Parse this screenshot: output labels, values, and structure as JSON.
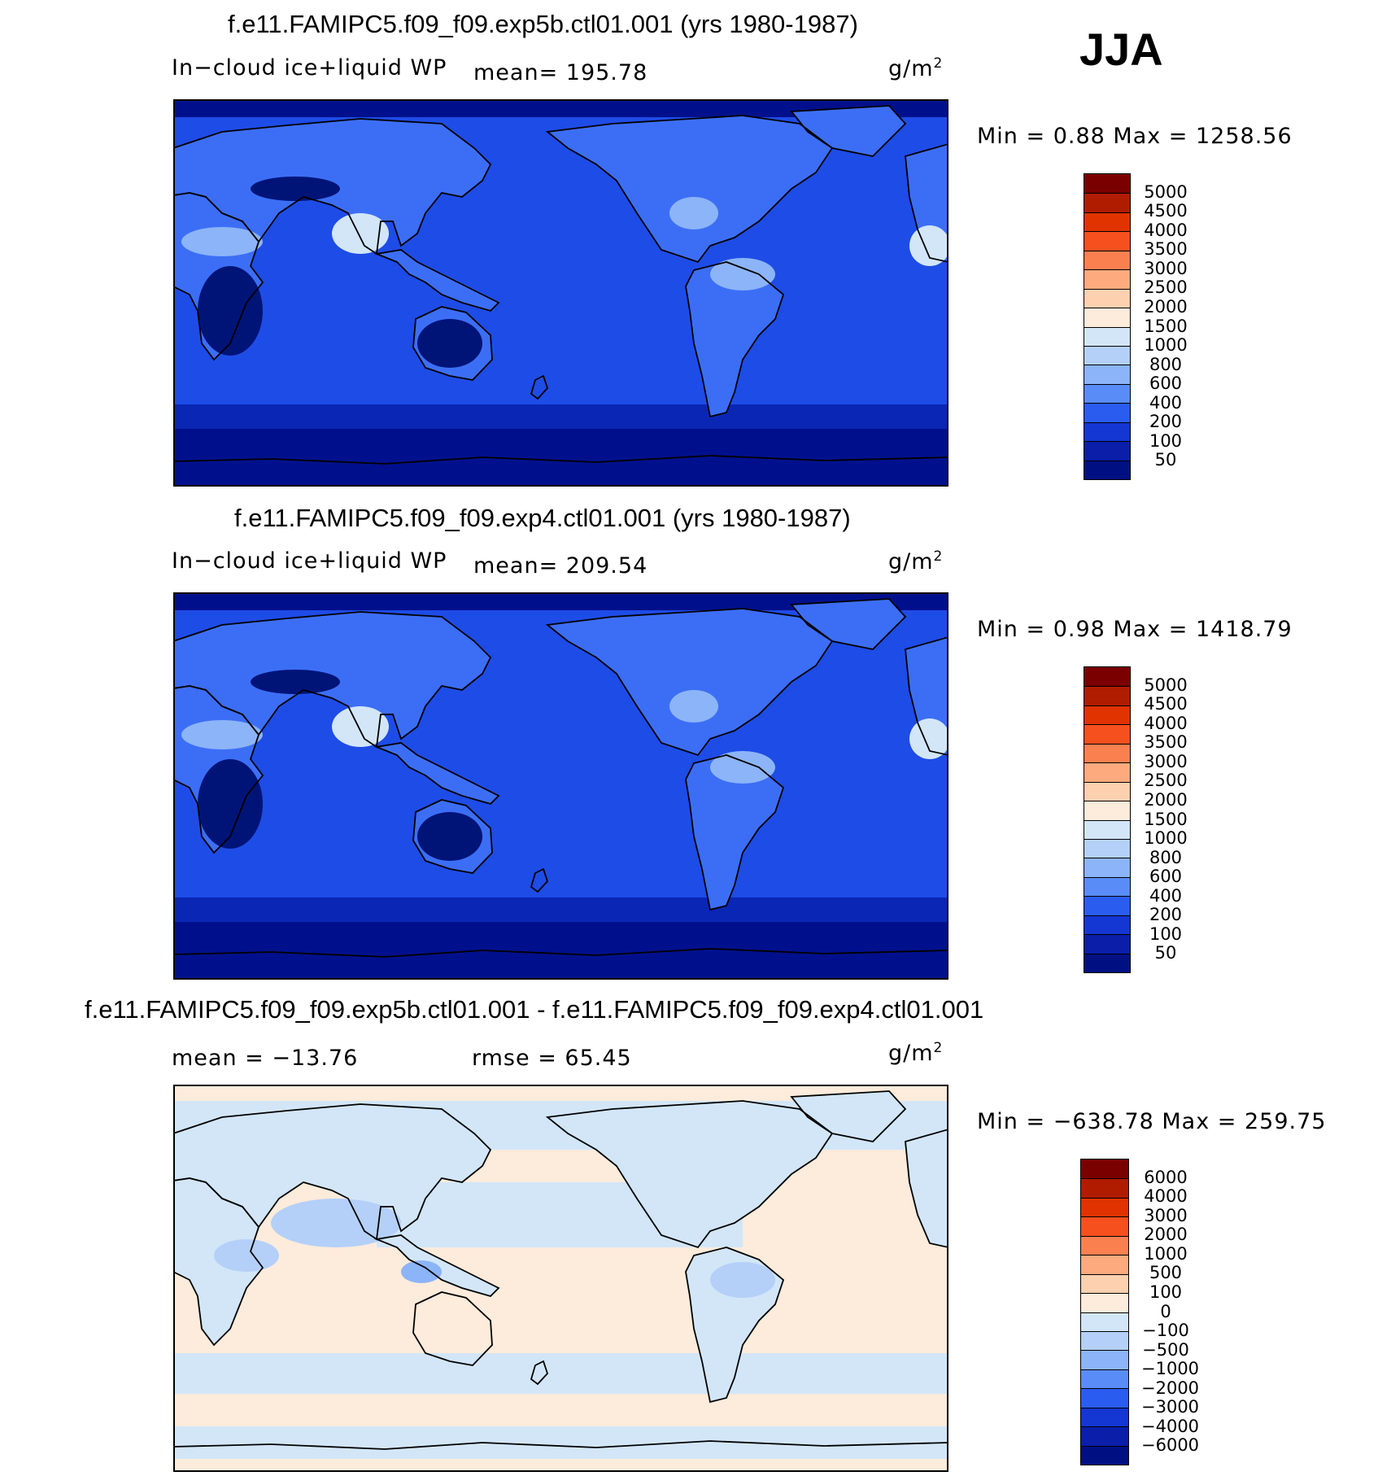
{
  "season": "JJA",
  "panels": [
    {
      "id": "exp5b",
      "title": "f.e11.FAMIPC5.f09_f09.exp5b.ctl01.001 (yrs 1980-1987)",
      "variable": "In−cloud ice+liquid WP",
      "stat": "mean=  195.78",
      "units": "g/m",
      "units_sup": "2",
      "minmax": "Min  =     0.88  Max  =  1258.56",
      "palette": "abs"
    },
    {
      "id": "exp4",
      "title": "f.e11.FAMIPC5.f09_f09.exp4.ctl01.001 (yrs 1980-1987)",
      "variable": "In−cloud ice+liquid WP",
      "stat": "mean=  209.54",
      "units": "g/m",
      "units_sup": "2",
      "minmax": "Min  =     0.98  Max  =  1418.79",
      "palette": "abs"
    },
    {
      "id": "diff",
      "title": "f.e11.FAMIPC5.f09_f09.exp5b.ctl01.001 - f.e11.FAMIPC5.f09_f09.exp4.ctl01.001",
      "variable": "mean  =  −13.76",
      "stat": "rmse  =    65.45",
      "units": "g/m",
      "units_sup": "2",
      "minmax": "Min  =  −638.78  Max  =  259.75",
      "palette": "diff"
    }
  ],
  "colorbars": {
    "abs": {
      "labels": [
        "5000",
        "4500",
        "4000",
        "3500",
        "3000",
        "2500",
        "2000",
        "1500",
        "1000",
        "800",
        "600",
        "400",
        "200",
        "100",
        "50"
      ],
      "colors": [
        "#7a0000",
        "#b01c00",
        "#e03300",
        "#f5501e",
        "#fa8050",
        "#fcaa7e",
        "#fdd0b0",
        "#fdebdb",
        "#d2e6f8",
        "#b4d0f8",
        "#8cb4f8",
        "#5a8cf8",
        "#2a5cf0",
        "#1436d2",
        "#0a1eaa",
        "#001082"
      ]
    },
    "diff": {
      "labels": [
        "6000",
        "4000",
        "3000",
        "2000",
        "1000",
        "500",
        "100",
        "0",
        "−100",
        "−500",
        "−1000",
        "−2000",
        "−3000",
        "−4000",
        "−6000"
      ],
      "colors": [
        "#7a0000",
        "#b01c00",
        "#e03300",
        "#f5501e",
        "#fa8050",
        "#fcaa7e",
        "#fdd0b0",
        "#fdebdb",
        "#d2e6f8",
        "#b4d0f8",
        "#8cb4f8",
        "#5a8cf8",
        "#2a5cf0",
        "#1436d2",
        "#0a1eaa",
        "#001082"
      ]
    }
  },
  "map_colors": {
    "ocean_abs": "#1e4ce6",
    "polar_abs": "#00108c",
    "band_abs": "#0a26b4",
    "dark_land": "#001478",
    "mid_land": "#3c6ef5",
    "light_land": "#8cb4f8",
    "pale_land": "#d2e6f8",
    "diff_pos": "#fdebdb",
    "diff_neg": "#d2e6f8",
    "diff_neg2": "#b4d0f8",
    "diff_neg3": "#8cb4f8",
    "coast": "#000000"
  }
}
